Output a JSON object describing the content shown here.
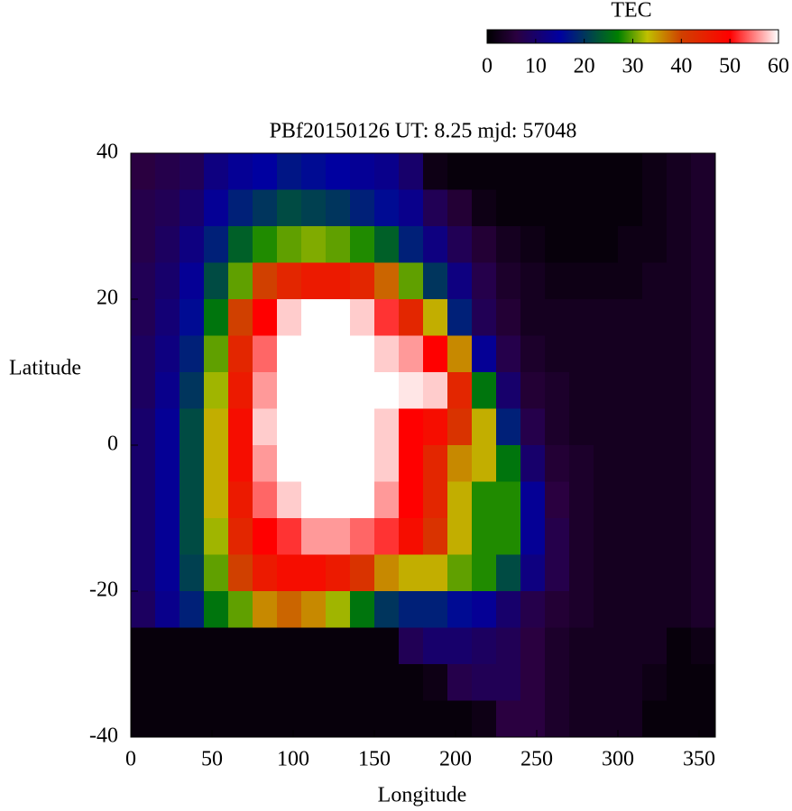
{
  "chart_data": {
    "type": "heatmap",
    "title": "PBf20150126  UT: 8.25  mjd: 57048",
    "xlabel": "Longitude",
    "ylabel": "Latitude",
    "colorbar_label": "TEC",
    "xlim": [
      0,
      360
    ],
    "ylim": [
      -40,
      40
    ],
    "clim": [
      0,
      60
    ],
    "xticks": [
      0,
      50,
      100,
      150,
      200,
      250,
      300,
      350
    ],
    "yticks": [
      -40,
      -20,
      0,
      20,
      40
    ],
    "cticks": [
      0,
      10,
      20,
      30,
      40,
      50,
      60
    ],
    "colorscale": [
      [
        0,
        "#000000"
      ],
      [
        6,
        "#2a0040"
      ],
      [
        15,
        "#0000a0"
      ],
      [
        27,
        "#008000"
      ],
      [
        33,
        "#c0c000"
      ],
      [
        40,
        "#d04000"
      ],
      [
        50,
        "#ff0000"
      ],
      [
        60,
        "#ffffff"
      ]
    ],
    "xbins": [
      0,
      15,
      30,
      45,
      60,
      75,
      90,
      105,
      120,
      135,
      150,
      165,
      180,
      195,
      210,
      225,
      240,
      255,
      270,
      285,
      300,
      315,
      330,
      345,
      360
    ],
    "ybins": [
      40,
      35,
      30,
      25,
      20,
      15,
      10,
      5,
      0,
      -5,
      -10,
      -15,
      -20,
      -25,
      -30,
      -35,
      -40
    ],
    "z": [
      [
        6,
        7,
        8,
        12,
        14,
        15,
        17,
        16,
        15,
        14,
        13,
        10,
        2,
        1,
        1,
        1,
        1,
        1,
        1,
        1,
        1,
        2,
        3,
        4
      ],
      [
        7,
        8,
        10,
        14,
        18,
        20,
        22,
        21,
        20,
        18,
        16,
        13,
        8,
        5,
        2,
        1,
        1,
        1,
        1,
        1,
        1,
        2,
        3,
        4
      ],
      [
        7,
        9,
        12,
        18,
        24,
        28,
        30,
        31,
        30,
        28,
        24,
        18,
        12,
        8,
        5,
        3,
        2,
        1,
        1,
        1,
        2,
        2,
        3,
        4
      ],
      [
        8,
        10,
        14,
        22,
        30,
        40,
        44,
        46,
        46,
        44,
        38,
        30,
        20,
        12,
        7,
        4,
        3,
        2,
        2,
        2,
        2,
        3,
        3,
        4
      ],
      [
        8,
        11,
        16,
        26,
        40,
        50,
        58,
        60,
        60,
        58,
        52,
        44,
        34,
        18,
        8,
        5,
        3,
        3,
        3,
        3,
        3,
        3,
        3,
        4
      ],
      [
        9,
        12,
        18,
        30,
        44,
        54,
        60,
        60,
        60,
        60,
        58,
        56,
        50,
        36,
        14,
        7,
        4,
        3,
        3,
        3,
        3,
        3,
        3,
        4
      ],
      [
        9,
        13,
        20,
        32,
        46,
        56,
        60,
        60,
        60,
        60,
        60,
        59,
        58,
        44,
        26,
        10,
        5,
        4,
        3,
        3,
        3,
        3,
        3,
        4
      ],
      [
        10,
        14,
        22,
        34,
        48,
        58,
        60,
        60,
        60,
        60,
        58,
        50,
        48,
        42,
        34,
        18,
        7,
        4,
        3,
        3,
        3,
        3,
        3,
        4
      ],
      [
        10,
        14,
        22,
        34,
        48,
        56,
        60,
        60,
        60,
        60,
        58,
        50,
        44,
        36,
        34,
        26,
        10,
        5,
        4,
        3,
        3,
        3,
        3,
        4
      ],
      [
        10,
        14,
        22,
        34,
        46,
        54,
        58,
        60,
        60,
        60,
        56,
        50,
        44,
        34,
        28,
        28,
        14,
        6,
        4,
        3,
        3,
        3,
        3,
        4
      ],
      [
        10,
        14,
        22,
        32,
        44,
        50,
        52,
        56,
        56,
        54,
        52,
        48,
        42,
        34,
        28,
        28,
        14,
        7,
        4,
        3,
        3,
        3,
        3,
        4
      ],
      [
        10,
        14,
        21,
        30,
        40,
        46,
        48,
        48,
        46,
        42,
        36,
        34,
        34,
        30,
        28,
        22,
        12,
        7,
        4,
        3,
        3,
        3,
        3,
        4
      ],
      [
        9,
        13,
        18,
        26,
        30,
        36,
        38,
        36,
        32,
        26,
        20,
        18,
        18,
        16,
        14,
        10,
        7,
        5,
        4,
        3,
        3,
        3,
        3,
        4
      ],
      [
        1,
        1,
        1,
        1,
        1,
        1,
        1,
        1,
        1,
        1,
        1,
        8,
        10,
        10,
        9,
        8,
        6,
        4,
        3,
        3,
        3,
        3,
        1,
        2
      ],
      [
        1,
        1,
        1,
        1,
        1,
        1,
        1,
        1,
        1,
        1,
        1,
        1,
        2,
        7,
        8,
        8,
        6,
        4,
        3,
        3,
        3,
        2,
        1,
        1
      ],
      [
        1,
        1,
        1,
        1,
        1,
        1,
        1,
        1,
        1,
        1,
        1,
        1,
        1,
        1,
        2,
        6,
        6,
        4,
        3,
        3,
        3,
        1,
        1,
        1
      ]
    ]
  }
}
